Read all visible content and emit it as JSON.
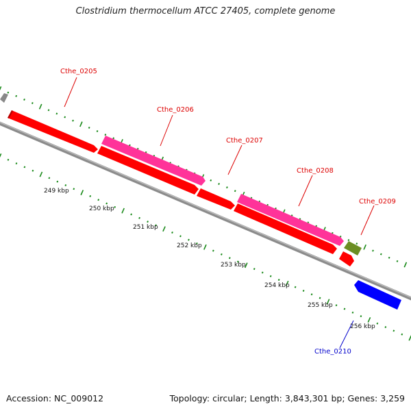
{
  "title": "Clostridium thermocellum ATCC 27405, complete genome",
  "footer": {
    "accession": "Accession: NC_009012",
    "summary": "Topology: circular; Length: 3,843,301 bp; Genes: 3,259"
  },
  "colors": {
    "backbone": "#8c8c8c",
    "tick": "#1a8a1a",
    "forward_cds": "#ff0000",
    "forward_cds_alt": "#ff3399",
    "forward_other": "#6b8e23",
    "reverse_cds": "#0000ff",
    "label_forward": "#dd0000",
    "label_reverse": "#0000cc"
  },
  "scale_labels": [
    "249 kbp",
    "250 kbp",
    "251 kbp",
    "252 kbp",
    "253 kbp",
    "254 kbp",
    "255 kbp",
    "256 kbp"
  ],
  "genes": [
    {
      "label": "Cthe_0205",
      "strand": "forward",
      "color": "#ff0000"
    },
    {
      "label": "Cthe_0206",
      "strand": "forward",
      "color": "#ff3399"
    },
    {
      "label": "Cthe_0207",
      "strand": "forward",
      "color": "#ff0000"
    },
    {
      "label": "Cthe_0208",
      "strand": "forward",
      "color": "#ff3399"
    },
    {
      "label": "Cthe_0209",
      "strand": "forward",
      "color": "#6b8e23"
    },
    {
      "label": "Cthe_0210",
      "strand": "reverse",
      "color": "#0000ff"
    }
  ]
}
